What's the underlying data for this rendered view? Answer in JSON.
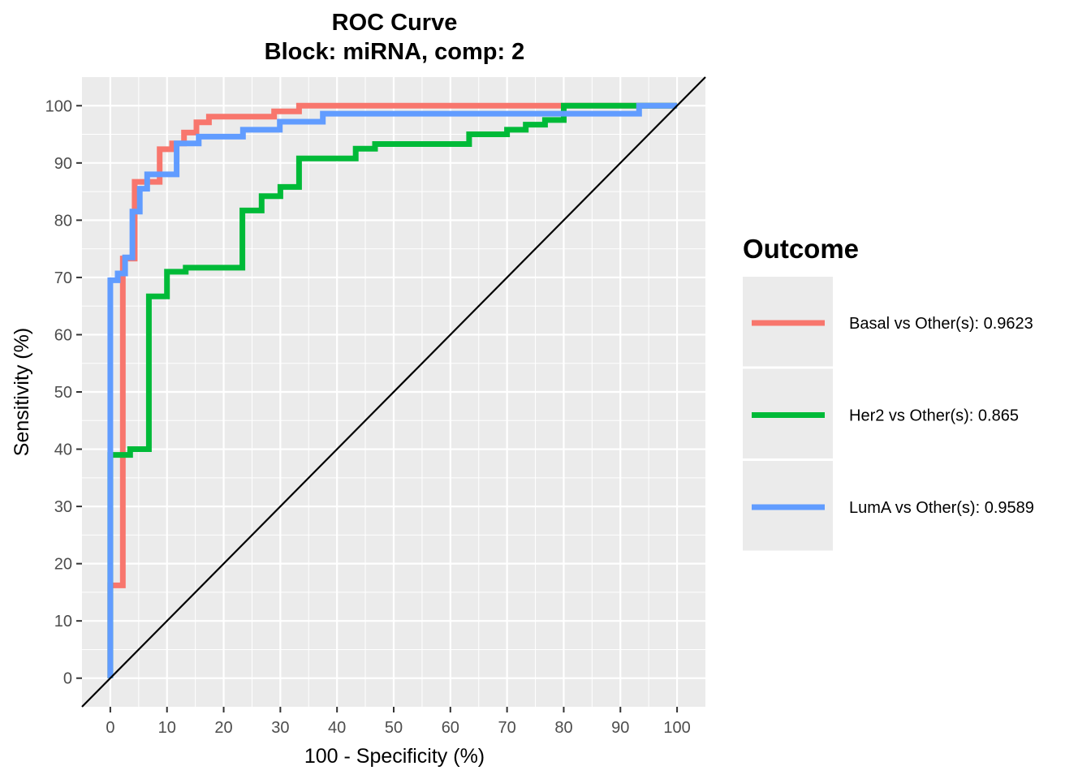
{
  "chart_data": {
    "type": "line",
    "title": "ROC Curve",
    "subtitle": "Block: miRNA, comp: 2",
    "xlabel": "100 - Specificity (%)",
    "ylabel": "Sensitivity (%)",
    "xlim": [
      -5,
      105
    ],
    "ylim": [
      -5,
      105
    ],
    "x_ticks": [
      0,
      10,
      20,
      30,
      40,
      50,
      60,
      70,
      80,
      90,
      100
    ],
    "x_tick_labels": [
      "0",
      "10",
      "20",
      "30",
      "40",
      "50",
      "60",
      "70",
      "80",
      "90",
      "100"
    ],
    "y_ticks": [
      0,
      10,
      20,
      30,
      40,
      50,
      60,
      70,
      80,
      90,
      100
    ],
    "y_tick_labels": [
      "0",
      "10",
      "20",
      "30",
      "40",
      "50",
      "60",
      "70",
      "80",
      "90",
      "100"
    ],
    "grid": true,
    "legend": {
      "title": "Outcome",
      "position": "right"
    },
    "reference_line": {
      "x": [
        -5,
        105
      ],
      "y": [
        -5,
        105
      ],
      "color": "#000000"
    },
    "series": [
      {
        "name": "Basal vs Other(s): 0.9623",
        "color": "#F8766D",
        "x": [
          0,
          0,
          2.2,
          2.2,
          4.3,
          4.3,
          8.7,
          8.7,
          10.9,
          10.9,
          13.0,
          13.0,
          15.2,
          15.2,
          17.4,
          17.4,
          28.9,
          28.9,
          33.3,
          33.3,
          80,
          100
        ],
        "y": [
          0,
          16.2,
          16.2,
          73.3,
          73.3,
          86.7,
          86.7,
          92.4,
          92.4,
          93.4,
          93.4,
          95.3,
          95.3,
          97.1,
          97.1,
          98.1,
          98.1,
          99.0,
          99.0,
          100,
          100,
          100
        ]
      },
      {
        "name": "Her2 vs Other(s): 0.865",
        "color": "#00BA38",
        "x": [
          0,
          0,
          3.5,
          3.5,
          6.8,
          6.8,
          10.0,
          10.0,
          13.3,
          13.3,
          23.3,
          23.3,
          26.7,
          26.7,
          30.0,
          30.0,
          33.3,
          33.3,
          43.3,
          43.3,
          46.7,
          46.7,
          63.3,
          63.3,
          70.0,
          70.0,
          73.3,
          73.3,
          76.7,
          76.7,
          80.0,
          80.0,
          100
        ],
        "y": [
          0,
          39.0,
          39.0,
          40.0,
          40.0,
          66.7,
          66.7,
          71.0,
          71.0,
          71.7,
          71.7,
          81.7,
          81.7,
          84.2,
          84.2,
          85.8,
          85.8,
          90.8,
          90.8,
          92.5,
          92.5,
          93.3,
          93.3,
          95.0,
          95.0,
          95.8,
          95.8,
          96.7,
          96.7,
          97.5,
          97.5,
          100,
          100
        ]
      },
      {
        "name": "LumA vs Other(s): 0.9589",
        "color": "#619CFF",
        "x": [
          0,
          0,
          1.3,
          1.3,
          2.6,
          2.6,
          3.9,
          3.9,
          5.2,
          5.2,
          6.5,
          6.5,
          11.7,
          11.7,
          15.6,
          15.6,
          23.4,
          23.4,
          29.9,
          29.9,
          37.5,
          37.5,
          93.3,
          93.3,
          100
        ],
        "y": [
          0,
          69.5,
          69.5,
          70.7,
          70.7,
          73.5,
          73.5,
          81.5,
          81.5,
          85.5,
          85.5,
          88.0,
          88.0,
          93.4,
          93.4,
          94.6,
          94.6,
          95.8,
          95.8,
          97.2,
          97.2,
          98.6,
          98.6,
          100,
          100
        ]
      }
    ]
  }
}
